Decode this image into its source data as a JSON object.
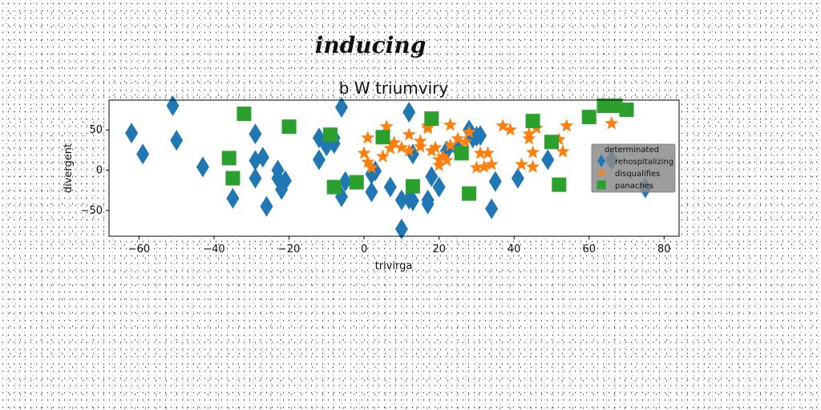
{
  "chart_data": {
    "type": "scatter",
    "suptitle": "inducing",
    "title": "b W triumviry",
    "xlabel": "trivirga",
    "ylabel": "divergent",
    "xlim": [
      -68,
      84
    ],
    "ylim": [
      -82,
      87
    ],
    "xticks": [
      -60,
      -40,
      -20,
      0,
      20,
      40,
      60,
      80
    ],
    "yticks": [
      -50,
      0,
      50
    ],
    "grid": false,
    "legend": {
      "title": "determinated",
      "placement": "center-right"
    },
    "series": [
      {
        "name": "rehospitalizing",
        "marker": "diamond",
        "color": "#1f77b4",
        "points": [
          [
            -62,
            46
          ],
          [
            -59,
            20
          ],
          [
            -51,
            80
          ],
          [
            -50,
            37
          ],
          [
            -43,
            4
          ],
          [
            -35,
            -35
          ],
          [
            -29,
            45
          ],
          [
            -29,
            12
          ],
          [
            -29,
            -10
          ],
          [
            -27,
            16
          ],
          [
            -26,
            -45
          ],
          [
            -23,
            0
          ],
          [
            -23,
            -10
          ],
          [
            -22,
            -24
          ],
          [
            -21,
            -13
          ],
          [
            -12,
            40
          ],
          [
            -12,
            13
          ],
          [
            -10,
            30
          ],
          [
            -8,
            40
          ],
          [
            -8,
            33
          ],
          [
            -6,
            78
          ],
          [
            -6,
            -33
          ],
          [
            -5,
            -14
          ],
          [
            2,
            -27
          ],
          [
            2,
            -5
          ],
          [
            3,
            -1
          ],
          [
            7,
            -21
          ],
          [
            10,
            -37
          ],
          [
            10,
            -73
          ],
          [
            12,
            72
          ],
          [
            12,
            -36
          ],
          [
            13,
            -38
          ],
          [
            13,
            20
          ],
          [
            17,
            -37
          ],
          [
            17,
            -42
          ],
          [
            18,
            -8
          ],
          [
            20,
            -21
          ],
          [
            22,
            24
          ],
          [
            25,
            26
          ],
          [
            28,
            50
          ],
          [
            29,
            40
          ],
          [
            30,
            42
          ],
          [
            31,
            43
          ],
          [
            34,
            -48
          ],
          [
            35,
            -14
          ],
          [
            41,
            -10
          ],
          [
            49,
            13
          ],
          [
            66,
            13
          ],
          [
            75,
            -22
          ]
        ]
      },
      {
        "name": "disqualifies",
        "marker": "star",
        "color": "#ff7f0e",
        "points": [
          [
            1,
            40
          ],
          [
            0,
            21
          ],
          [
            1,
            10
          ],
          [
            2,
            3
          ],
          [
            5,
            17
          ],
          [
            6,
            54
          ],
          [
            7,
            27
          ],
          [
            8,
            34
          ],
          [
            10,
            28
          ],
          [
            12,
            44
          ],
          [
            12,
            24
          ],
          [
            15,
            29
          ],
          [
            15,
            36
          ],
          [
            17,
            52
          ],
          [
            17,
            55
          ],
          [
            18,
            24
          ],
          [
            19,
            28
          ],
          [
            20,
            13
          ],
          [
            20,
            6
          ],
          [
            21,
            17
          ],
          [
            22,
            12
          ],
          [
            23,
            56
          ],
          [
            23,
            31
          ],
          [
            25,
            39
          ],
          [
            27,
            35
          ],
          [
            28,
            47
          ],
          [
            30,
            3
          ],
          [
            31,
            21
          ],
          [
            32,
            4
          ],
          [
            33,
            21
          ],
          [
            34,
            7
          ],
          [
            37,
            55
          ],
          [
            39,
            50
          ],
          [
            42,
            7
          ],
          [
            44,
            39
          ],
          [
            44,
            45
          ],
          [
            45,
            4
          ],
          [
            45,
            22
          ],
          [
            46,
            52
          ],
          [
            52,
            38
          ],
          [
            53,
            23
          ],
          [
            54,
            55
          ],
          [
            66,
            58
          ]
        ]
      },
      {
        "name": "panaches",
        "marker": "square",
        "color": "#2ca02c",
        "points": [
          [
            -32,
            70
          ],
          [
            -36,
            15
          ],
          [
            -35,
            -10
          ],
          [
            -20,
            54
          ],
          [
            -9,
            44
          ],
          [
            -8,
            -21
          ],
          [
            -2,
            -15
          ],
          [
            5,
            41
          ],
          [
            13,
            -20
          ],
          [
            18,
            64
          ],
          [
            26,
            21
          ],
          [
            28,
            -29
          ],
          [
            45,
            61
          ],
          [
            50,
            35
          ],
          [
            52,
            -18
          ],
          [
            60,
            66
          ],
          [
            64,
            80
          ],
          [
            67,
            80
          ],
          [
            70,
            75
          ]
        ]
      }
    ]
  }
}
